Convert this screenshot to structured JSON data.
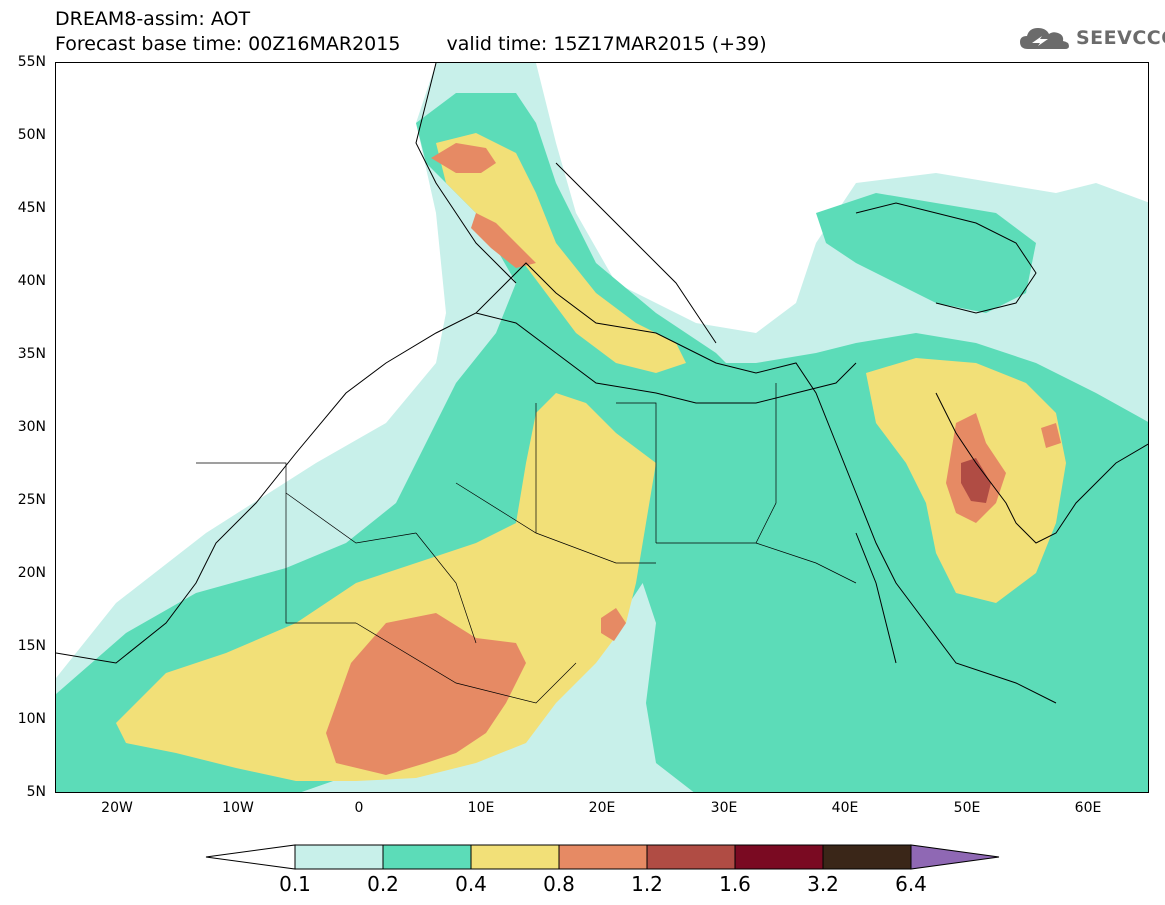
{
  "header": {
    "line1": "DREAM8-assim: AOT",
    "base_time": "Forecast base time: 00Z16MAR2015",
    "valid_time": "valid time: 15Z17MAR2015 (+39)"
  },
  "logo": {
    "text": "SEEVCCC",
    "icon": "cloud-icon"
  },
  "map": {
    "lat_labels": [
      "55N",
      "50N",
      "45N",
      "40N",
      "35N",
      "30N",
      "25N",
      "20N",
      "15N",
      "10N",
      "5N"
    ],
    "lon_labels": [
      "20W",
      "10W",
      "0",
      "10E",
      "20E",
      "30E",
      "40E",
      "50E",
      "60E"
    ]
  },
  "legend": {
    "labels": [
      "0.1",
      "0.2",
      "0.4",
      "0.8",
      "1.2",
      "1.6",
      "3.2",
      "6.4"
    ],
    "colors": [
      "#c8f0ea",
      "#5cdcb8",
      "#f2e078",
      "#e68a64",
      "#b04c44",
      "#7a0a22",
      "#3a2618",
      "#8f68b4"
    ]
  }
}
